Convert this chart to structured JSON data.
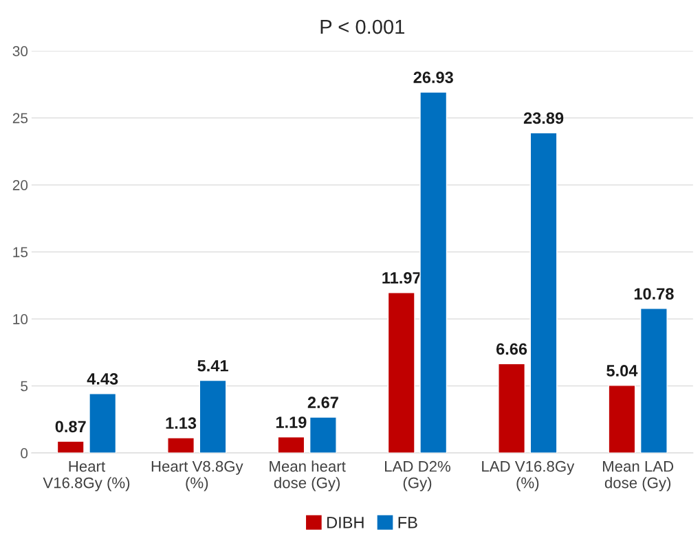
{
  "chart_data": {
    "type": "bar",
    "title": "P < 0.001",
    "categories": [
      "Heart\nV16.8Gy (%)",
      "Heart V8.8Gy\n(%)",
      "Mean heart\ndose (Gy)",
      "LAD D2%\n(Gy)",
      "LAD V16.8Gy\n(%)",
      "Mean LAD\ndose (Gy)"
    ],
    "series": [
      {
        "name": "DIBH",
        "color": "#c00000",
        "values": [
          0.87,
          1.13,
          1.19,
          11.97,
          6.66,
          5.04
        ]
      },
      {
        "name": "FB",
        "color": "#0070c0",
        "values": [
          4.43,
          5.41,
          2.67,
          26.93,
          23.89,
          10.78
        ]
      }
    ],
    "ylim": [
      0,
      30
    ],
    "yticks": [
      0,
      5,
      10,
      15,
      20,
      25,
      30
    ],
    "grid": "y",
    "legend": "bottom",
    "data_labels": true
  }
}
